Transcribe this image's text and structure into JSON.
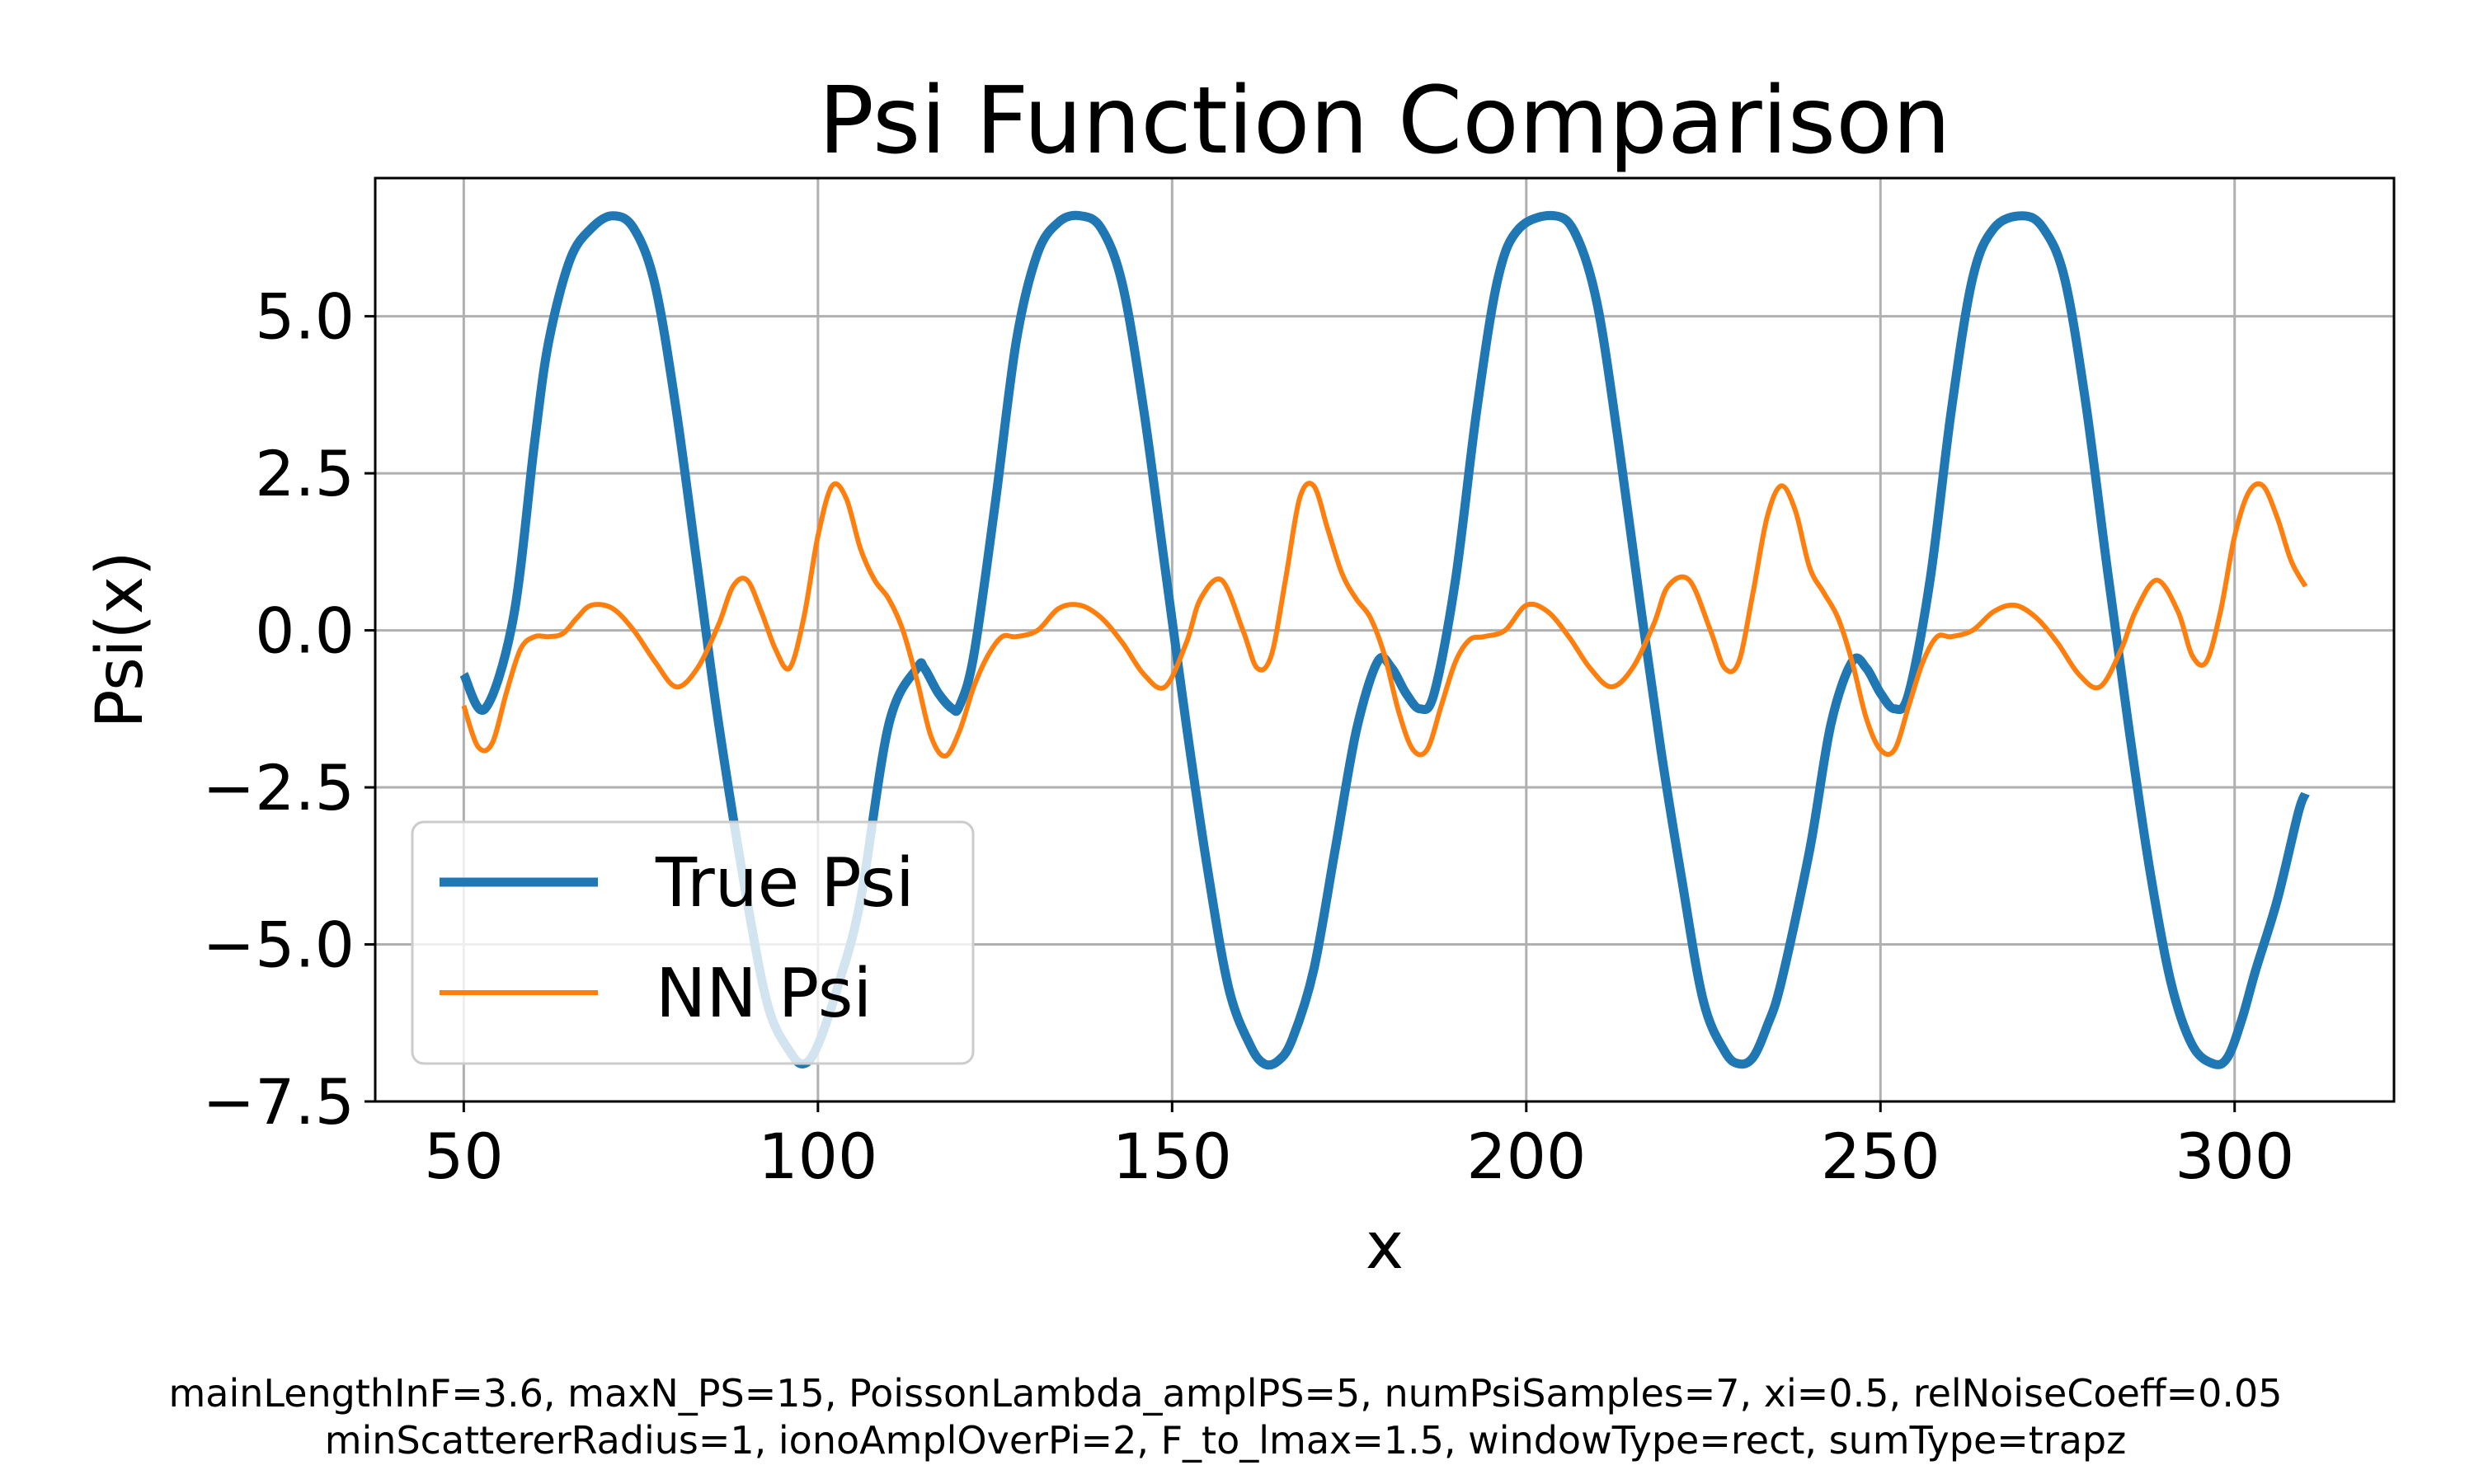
{
  "chart_data": {
    "type": "line",
    "title": "Psi Function Comparison",
    "xlabel": "x",
    "ylabel": "Psi(x)",
    "xlim": [
      37.5,
      322.5
    ],
    "ylim": [
      -7.5,
      7.2
    ],
    "xticks": [
      50,
      100,
      150,
      200,
      250,
      300
    ],
    "xtick_labels": [
      "50",
      "100",
      "150",
      "200",
      "250",
      "300"
    ],
    "yticks": [
      5.0,
      2.5,
      0.0,
      -2.5,
      -5.0,
      -7.5
    ],
    "ytick_labels": [
      "5.0",
      "2.5",
      "0.0",
      "−2.5",
      "−5.0",
      "−7.5"
    ],
    "grid": true,
    "legend_position": "lower-left",
    "series": [
      {
        "name": "True Psi",
        "color": "#1f77b4",
        "x": [
          50,
          53,
          57,
          60,
          62,
          65,
          68,
          71,
          74,
          77,
          80,
          83,
          86,
          90,
          93,
          96,
          98,
          100,
          103,
          106,
          110,
          114,
          115,
          117,
          119,
          120,
          122,
          125,
          128,
          131,
          134,
          137,
          140,
          143,
          146,
          149,
          152,
          155,
          158,
          161,
          163,
          165,
          167,
          170,
          173,
          176,
          179,
          181,
          183,
          185,
          187,
          190,
          193,
          196,
          199,
          204,
          207,
          210,
          213,
          216,
          219,
          222,
          225,
          228,
          230,
          232,
          234,
          236,
          240,
          243,
          246,
          248,
          250,
          252,
          254,
          257,
          260,
          263,
          266,
          270,
          273,
          276,
          279,
          282,
          285,
          288,
          291,
          294,
          297,
          299,
          301,
          303,
          306,
          309,
          310
        ],
        "y": [
          -0.7,
          -1.25,
          0.2,
          3.0,
          4.6,
          5.9,
          6.4,
          6.6,
          6.4,
          5.5,
          3.5,
          1.0,
          -1.5,
          -4.3,
          -6.0,
          -6.7,
          -6.9,
          -6.6,
          -5.6,
          -4.3,
          -1.5,
          -0.6,
          -0.6,
          -1.0,
          -1.25,
          -1.2,
          -0.4,
          2.0,
          4.6,
          6.0,
          6.5,
          6.6,
          6.4,
          5.5,
          3.5,
          1.0,
          -1.5,
          -3.8,
          -5.7,
          -6.6,
          -6.9,
          -6.85,
          -6.5,
          -5.4,
          -3.5,
          -1.6,
          -0.5,
          -0.6,
          -1.0,
          -1.25,
          -1.0,
          0.8,
          3.5,
          5.6,
          6.4,
          6.6,
          6.3,
          5.2,
          3.0,
          0.5,
          -1.9,
          -4.0,
          -5.9,
          -6.7,
          -6.9,
          -6.8,
          -6.3,
          -5.6,
          -3.5,
          -1.5,
          -0.5,
          -0.6,
          -1.0,
          -1.25,
          -1.0,
          0.8,
          3.5,
          5.6,
          6.4,
          6.6,
          6.4,
          5.6,
          3.6,
          1.0,
          -1.5,
          -3.8,
          -5.6,
          -6.6,
          -6.9,
          -6.8,
          -6.2,
          -5.4,
          -4.3,
          -2.9,
          -2.6
        ]
      },
      {
        "name": "NN Psi",
        "color": "#ff7f0e",
        "x": [
          50,
          52,
          54,
          56,
          58,
          60,
          62,
          64,
          66,
          68,
          71,
          74,
          77,
          80,
          83,
          86,
          88,
          90,
          92,
          94,
          96,
          98,
          100,
          102,
          104,
          106,
          108,
          110,
          112,
          114,
          116,
          118,
          120,
          122,
          124,
          126,
          128,
          131,
          134,
          137,
          140,
          143,
          146,
          149,
          152,
          154,
          157,
          160,
          162,
          164,
          166,
          168,
          170,
          172,
          174,
          176,
          178,
          180,
          182,
          184,
          186,
          188,
          190,
          192,
          194,
          197,
          200,
          203,
          206,
          209,
          212,
          215,
          218,
          220,
          223,
          226,
          228,
          230,
          232,
          234,
          236,
          238,
          240,
          242,
          244,
          246,
          248,
          250,
          252,
          254,
          256,
          258,
          260,
          263,
          266,
          269,
          272,
          275,
          278,
          281,
          284,
          286,
          289,
          292,
          294,
          296,
          298,
          300,
          302,
          304,
          306,
          308,
          310
        ],
        "y": [
          -1.2,
          -1.85,
          -1.8,
          -1.0,
          -0.3,
          -0.1,
          -0.1,
          -0.05,
          0.2,
          0.4,
          0.35,
          0.0,
          -0.5,
          -0.9,
          -0.6,
          0.1,
          0.7,
          0.8,
          0.3,
          -0.3,
          -0.6,
          0.2,
          1.5,
          2.3,
          2.1,
          1.3,
          0.8,
          0.5,
          0.0,
          -0.8,
          -1.7,
          -2.0,
          -1.6,
          -0.9,
          -0.4,
          -0.1,
          -0.1,
          0.0,
          0.35,
          0.4,
          0.2,
          -0.2,
          -0.7,
          -0.9,
          -0.2,
          0.5,
          0.8,
          0.0,
          -0.6,
          -0.4,
          0.8,
          2.1,
          2.3,
          1.6,
          0.9,
          0.5,
          0.2,
          -0.4,
          -1.3,
          -1.9,
          -1.9,
          -1.2,
          -0.5,
          -0.15,
          -0.1,
          0.0,
          0.4,
          0.3,
          -0.1,
          -0.6,
          -0.9,
          -0.6,
          0.1,
          0.7,
          0.8,
          0.0,
          -0.6,
          -0.5,
          0.6,
          1.8,
          2.3,
          1.9,
          1.0,
          0.6,
          0.2,
          -0.5,
          -1.4,
          -1.9,
          -1.9,
          -1.2,
          -0.5,
          -0.1,
          -0.1,
          0.0,
          0.3,
          0.4,
          0.2,
          -0.2,
          -0.7,
          -0.9,
          -0.3,
          0.3,
          0.8,
          0.3,
          -0.4,
          -0.5,
          0.3,
          1.5,
          2.2,
          2.3,
          1.8,
          1.1,
          0.7
        ]
      }
    ],
    "caption_lines": [
      "mainLengthInF=3.6, maxN_PS=15, PoissonLambda_amplPS=5, numPsiSamples=7, xi=0.5, relNoiseCoeff=0.05",
      "minScattererRadius=1, ionoAmplOverPi=2, F_to_lmax=1.5, windowType=rect, sumType=trapz"
    ]
  }
}
